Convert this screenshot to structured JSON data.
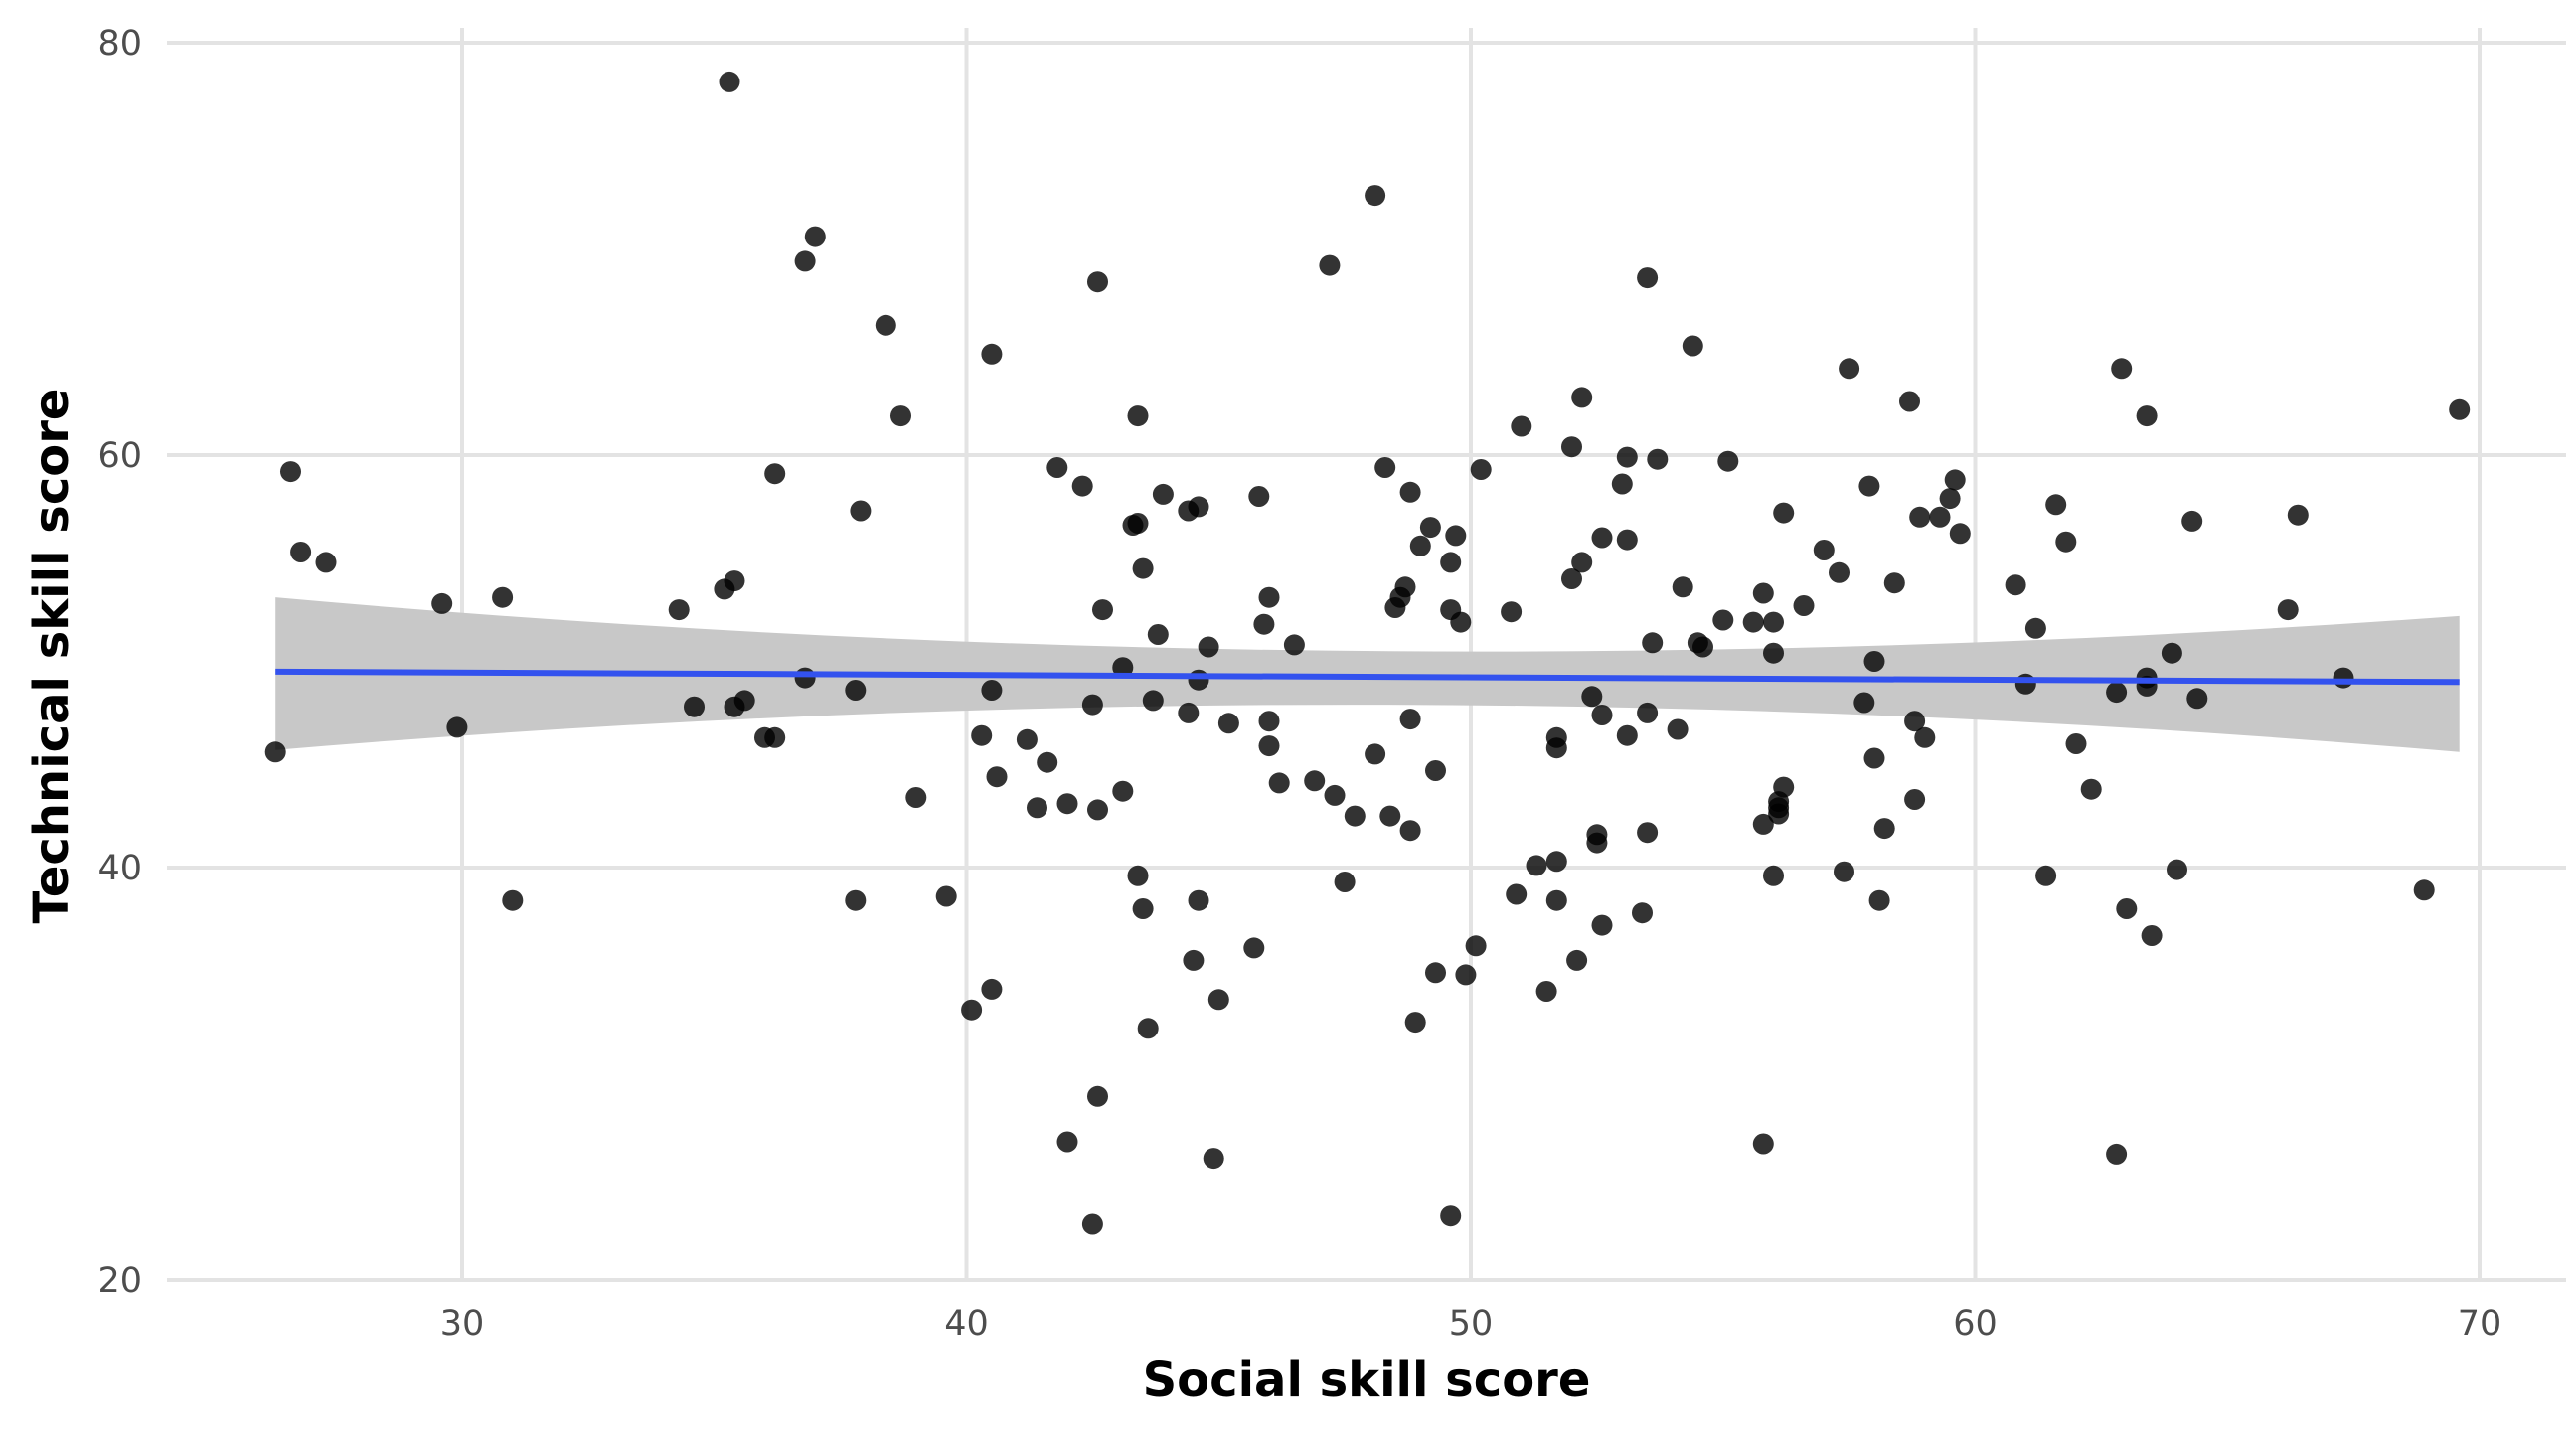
{
  "chart_data": {
    "type": "scatter",
    "title": "",
    "xlabel": "Social skill score",
    "ylabel": "Technical skill score",
    "xlim": [
      24.9,
      72.5
    ],
    "ylim": [
      20,
      80
    ],
    "x_ticks": [
      30,
      40,
      50,
      60,
      70
    ],
    "y_ticks": [
      20,
      40,
      60,
      80
    ],
    "x_tick_labels": [
      "30",
      "40",
      "50",
      "60",
      "70"
    ],
    "y_tick_labels": [
      "20",
      "40",
      "60",
      "80"
    ],
    "grid": true,
    "colors": {
      "points": "#000000",
      "trend_line": "#3352ee",
      "ribbon": "#c8c8c8",
      "grid": "#e3e3e3"
    },
    "trend": {
      "method": "linear",
      "x": [
        26.3,
        69.6
      ],
      "y": [
        49.5,
        49.0
      ],
      "ci_upper": [
        53.1,
        52.2
      ],
      "ci_mid_upper": 50.5,
      "ci_lower": [
        45.7,
        45.6
      ],
      "ci_mid_lower": 47.9
    },
    "points": [
      [
        35.3,
        78.1
      ],
      [
        48.1,
        72.6
      ],
      [
        37.0,
        70.6
      ],
      [
        36.8,
        69.4
      ],
      [
        47.2,
        69.2
      ],
      [
        53.5,
        68.6
      ],
      [
        42.6,
        68.4
      ],
      [
        38.4,
        66.3
      ],
      [
        54.4,
        65.3
      ],
      [
        40.5,
        64.9
      ],
      [
        57.5,
        64.2
      ],
      [
        62.9,
        64.2
      ],
      [
        52.2,
        62.8
      ],
      [
        58.7,
        62.6
      ],
      [
        69.6,
        62.2
      ],
      [
        43.4,
        61.9
      ],
      [
        38.7,
        61.9
      ],
      [
        63.4,
        61.9
      ],
      [
        51.0,
        61.4
      ],
      [
        52.0,
        60.4
      ],
      [
        53.1,
        59.9
      ],
      [
        53.7,
        59.8
      ],
      [
        55.1,
        59.7
      ],
      [
        41.8,
        59.4
      ],
      [
        48.3,
        59.4
      ],
      [
        50.2,
        59.3
      ],
      [
        26.6,
        59.2
      ],
      [
        36.2,
        59.1
      ],
      [
        59.6,
        58.8
      ],
      [
        53.0,
        58.6
      ],
      [
        57.9,
        58.5
      ],
      [
        42.3,
        58.5
      ],
      [
        48.8,
        58.2
      ],
      [
        43.9,
        58.1
      ],
      [
        45.8,
        58.0
      ],
      [
        59.5,
        57.9
      ],
      [
        61.6,
        57.6
      ],
      [
        44.6,
        57.5
      ],
      [
        44.4,
        57.3
      ],
      [
        37.9,
        57.3
      ],
      [
        56.2,
        57.2
      ],
      [
        66.4,
        57.1
      ],
      [
        58.9,
        57.0
      ],
      [
        59.3,
        57.0
      ],
      [
        64.3,
        56.8
      ],
      [
        43.4,
        56.7
      ],
      [
        43.3,
        56.6
      ],
      [
        49.2,
        56.5
      ],
      [
        59.7,
        56.2
      ],
      [
        49.7,
        56.1
      ],
      [
        52.6,
        56.0
      ],
      [
        53.1,
        55.9
      ],
      [
        61.8,
        55.8
      ],
      [
        49.0,
        55.6
      ],
      [
        57.0,
        55.4
      ],
      [
        26.8,
        55.3
      ],
      [
        27.3,
        54.8
      ],
      [
        49.6,
        54.8
      ],
      [
        52.2,
        54.8
      ],
      [
        43.5,
        54.5
      ],
      [
        57.3,
        54.3
      ],
      [
        52.0,
        54.0
      ],
      [
        35.4,
        53.9
      ],
      [
        58.4,
        53.8
      ],
      [
        60.8,
        53.7
      ],
      [
        48.7,
        53.6
      ],
      [
        54.2,
        53.6
      ],
      [
        35.2,
        53.5
      ],
      [
        55.8,
        53.3
      ],
      [
        48.6,
        53.1
      ],
      [
        30.8,
        53.1
      ],
      [
        46.0,
        53.1
      ],
      [
        29.6,
        52.8
      ],
      [
        56.6,
        52.7
      ],
      [
        48.5,
        52.6
      ],
      [
        42.7,
        52.5
      ],
      [
        49.6,
        52.5
      ],
      [
        66.2,
        52.5
      ],
      [
        34.3,
        52.5
      ],
      [
        50.8,
        52.4
      ],
      [
        55.0,
        52.0
      ],
      [
        55.6,
        51.9
      ],
      [
        49.8,
        51.9
      ],
      [
        56.0,
        51.9
      ],
      [
        45.9,
        51.8
      ],
      [
        61.2,
        51.6
      ],
      [
        43.8,
        51.3
      ],
      [
        53.6,
        50.9
      ],
      [
        54.5,
        50.9
      ],
      [
        46.5,
        50.8
      ],
      [
        44.8,
        50.7
      ],
      [
        54.6,
        50.7
      ],
      [
        56.0,
        50.4
      ],
      [
        63.9,
        50.4
      ],
      [
        58.0,
        50.0
      ],
      [
        43.1,
        49.7
      ],
      [
        36.8,
        49.2
      ],
      [
        63.4,
        49.2
      ],
      [
        67.3,
        49.2
      ],
      [
        44.6,
        49.1
      ],
      [
        61.0,
        48.9
      ],
      [
        63.4,
        48.8
      ],
      [
        37.8,
        48.6
      ],
      [
        40.5,
        48.6
      ],
      [
        62.8,
        48.5
      ],
      [
        52.4,
        48.3
      ],
      [
        64.4,
        48.2
      ],
      [
        35.6,
        48.1
      ],
      [
        43.7,
        48.1
      ],
      [
        57.8,
        48.0
      ],
      [
        42.5,
        47.9
      ],
      [
        34.6,
        47.8
      ],
      [
        35.4,
        47.8
      ],
      [
        44.4,
        47.5
      ],
      [
        53.5,
        47.5
      ],
      [
        52.6,
        47.4
      ],
      [
        48.8,
        47.2
      ],
      [
        58.8,
        47.1
      ],
      [
        46.0,
        47.1
      ],
      [
        45.2,
        47.0
      ],
      [
        54.1,
        46.7
      ],
      [
        29.9,
        46.8
      ],
      [
        40.3,
        46.4
      ],
      [
        59.0,
        46.3
      ],
      [
        51.7,
        46.3
      ],
      [
        36.0,
        46.3
      ],
      [
        36.2,
        46.3
      ],
      [
        41.2,
        46.2
      ],
      [
        53.1,
        46.4
      ],
      [
        62.0,
        46.0
      ],
      [
        51.7,
        45.8
      ],
      [
        46.0,
        45.9
      ],
      [
        26.3,
        45.6
      ],
      [
        48.1,
        45.5
      ],
      [
        58.0,
        45.3
      ],
      [
        41.6,
        45.1
      ],
      [
        49.3,
        44.7
      ],
      [
        40.6,
        44.4
      ],
      [
        46.9,
        44.2
      ],
      [
        46.2,
        44.1
      ],
      [
        56.2,
        43.9
      ],
      [
        62.3,
        43.8
      ],
      [
        43.1,
        43.7
      ],
      [
        47.3,
        43.5
      ],
      [
        39.0,
        43.4
      ],
      [
        58.8,
        43.3
      ],
      [
        56.1,
        43.2
      ],
      [
        42.0,
        43.1
      ],
      [
        56.1,
        42.9
      ],
      [
        41.4,
        42.9
      ],
      [
        42.6,
        42.8
      ],
      [
        47.7,
        42.5
      ],
      [
        48.4,
        42.5
      ],
      [
        56.1,
        42.6
      ],
      [
        55.8,
        42.1
      ],
      [
        58.2,
        41.9
      ],
      [
        48.8,
        41.8
      ],
      [
        53.5,
        41.7
      ],
      [
        52.5,
        41.6
      ],
      [
        52.5,
        41.2
      ],
      [
        51.3,
        40.1
      ],
      [
        51.7,
        40.3
      ],
      [
        57.4,
        39.8
      ],
      [
        61.4,
        39.6
      ],
      [
        64.0,
        39.9
      ],
      [
        56.0,
        39.6
      ],
      [
        43.4,
        39.6
      ],
      [
        47.5,
        39.3
      ],
      [
        68.9,
        38.9
      ],
      [
        50.9,
        38.7
      ],
      [
        39.6,
        38.6
      ],
      [
        37.8,
        38.4
      ],
      [
        31.0,
        38.4
      ],
      [
        44.6,
        38.4
      ],
      [
        51.7,
        38.4
      ],
      [
        58.1,
        38.4
      ],
      [
        43.5,
        38.0
      ],
      [
        63.0,
        38.0
      ],
      [
        53.4,
        37.8
      ],
      [
        52.6,
        37.2
      ],
      [
        63.5,
        36.7
      ],
      [
        50.1,
        36.2
      ],
      [
        45.7,
        36.1
      ],
      [
        52.1,
        35.5
      ],
      [
        44.5,
        35.5
      ],
      [
        49.3,
        34.9
      ],
      [
        49.9,
        34.8
      ],
      [
        40.5,
        34.1
      ],
      [
        51.5,
        34.0
      ],
      [
        45.0,
        33.6
      ],
      [
        40.1,
        33.1
      ],
      [
        48.9,
        32.5
      ],
      [
        43.6,
        32.2
      ],
      [
        42.6,
        28.9
      ],
      [
        42.0,
        26.7
      ],
      [
        55.8,
        26.6
      ],
      [
        62.8,
        26.1
      ],
      [
        44.9,
        25.9
      ],
      [
        49.6,
        23.1
      ],
      [
        42.5,
        22.7
      ]
    ]
  }
}
